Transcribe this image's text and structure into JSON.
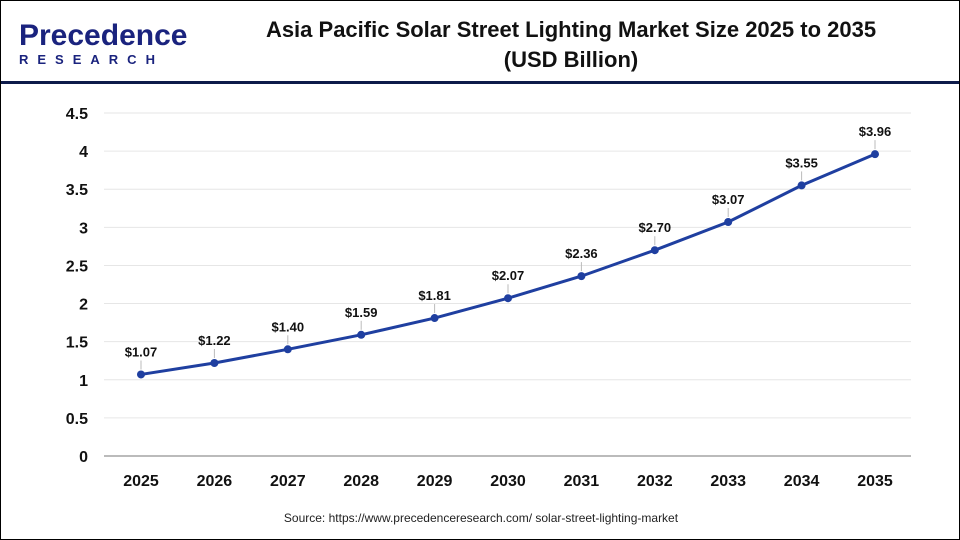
{
  "logo": {
    "line1": "Precedence",
    "line2": "RESEARCH"
  },
  "title": "Asia Pacific Solar Street Lighting Market Size 2025 to 2035",
  "subtitle": "(USD Billion)",
  "source": "Source: https://www.precedenceresearch.com/ solar-street-lighting-market",
  "colors": {
    "line": "#1f3fa0",
    "header_rule": "#0d1b4a",
    "grid": "#e6e6e6"
  },
  "chart_data": {
    "type": "line",
    "title": "Asia Pacific Solar Street Lighting Market Size 2025 to 2035 (USD Billion)",
    "categories": [
      "2025",
      "2026",
      "2027",
      "2028",
      "2029",
      "2030",
      "2031",
      "2032",
      "2033",
      "2034",
      "2035"
    ],
    "values": [
      1.07,
      1.22,
      1.4,
      1.59,
      1.81,
      2.07,
      2.36,
      2.7,
      3.07,
      3.55,
      3.96
    ],
    "data_labels": [
      "$1.07",
      "$1.22",
      "$1.40",
      "$1.59",
      "$1.81",
      "$2.07",
      "$2.36",
      "$2.70",
      "$3.07",
      "$3.55",
      "$3.96"
    ],
    "yticks": [
      "0",
      "0.5",
      "1",
      "1.5",
      "2",
      "2.5",
      "3",
      "3.5",
      "4",
      "4.5"
    ],
    "ylim": [
      0,
      4.5
    ],
    "grid": true,
    "legend": "none"
  }
}
